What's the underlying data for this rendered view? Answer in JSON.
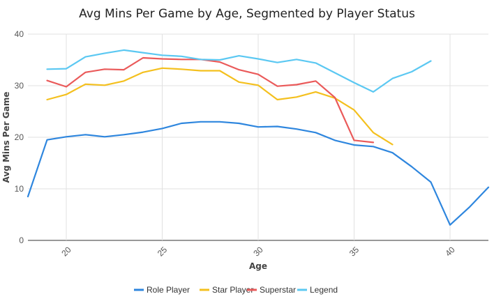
{
  "chart_data": {
    "type": "line",
    "title": "Avg Mins Per Game by Age, Segmented by Player Status",
    "xlabel": "Age",
    "ylabel": "Avg Mins Per Game",
    "xlim": [
      18,
      42
    ],
    "ylim": [
      0,
      40
    ],
    "x_ticks": [
      20,
      25,
      30,
      35,
      40
    ],
    "y_ticks": [
      0,
      10,
      20,
      30,
      40
    ],
    "grid": true,
    "legend_position": "bottom",
    "series": [
      {
        "name": "Role Player",
        "color": "#2e86de",
        "points": [
          [
            18,
            8.5
          ],
          [
            19,
            19.5
          ],
          [
            20,
            20.1
          ],
          [
            21,
            20.5
          ],
          [
            22,
            20.1
          ],
          [
            23,
            20.5
          ],
          [
            24,
            21.0
          ],
          [
            25,
            21.7
          ],
          [
            26,
            22.7
          ],
          [
            27,
            23.0
          ],
          [
            28,
            23.0
          ],
          [
            29,
            22.7
          ],
          [
            30,
            22.0
          ],
          [
            31,
            22.1
          ],
          [
            32,
            21.6
          ],
          [
            33,
            20.9
          ],
          [
            34,
            19.4
          ],
          [
            35,
            18.5
          ],
          [
            36,
            18.2
          ],
          [
            37,
            17.0
          ],
          [
            38,
            14.3
          ],
          [
            39,
            11.3
          ],
          [
            40,
            3.0
          ],
          [
            41,
            6.4
          ],
          [
            42,
            10.3
          ]
        ]
      },
      {
        "name": "Star Player",
        "color": "#f4c01e",
        "points": [
          [
            19,
            27.3
          ],
          [
            20,
            28.3
          ],
          [
            21,
            30.3
          ],
          [
            22,
            30.1
          ],
          [
            23,
            30.9
          ],
          [
            24,
            32.6
          ],
          [
            25,
            33.4
          ],
          [
            26,
            33.2
          ],
          [
            27,
            32.9
          ],
          [
            28,
            32.9
          ],
          [
            29,
            30.7
          ],
          [
            30,
            30.1
          ],
          [
            31,
            27.3
          ],
          [
            32,
            27.8
          ],
          [
            33,
            28.8
          ],
          [
            34,
            27.6
          ],
          [
            35,
            25.3
          ],
          [
            36,
            20.9
          ],
          [
            37,
            18.6
          ]
        ]
      },
      {
        "name": "Superstar",
        "color": "#ea5a5a",
        "points": [
          [
            19,
            31.0
          ],
          [
            20,
            29.8
          ],
          [
            21,
            32.6
          ],
          [
            22,
            33.2
          ],
          [
            23,
            33.1
          ],
          [
            24,
            35.4
          ],
          [
            25,
            35.2
          ],
          [
            26,
            35.1
          ],
          [
            27,
            35.1
          ],
          [
            28,
            34.6
          ],
          [
            29,
            33.1
          ],
          [
            30,
            32.2
          ],
          [
            31,
            29.9
          ],
          [
            32,
            30.2
          ],
          [
            33,
            30.9
          ],
          [
            34,
            27.7
          ],
          [
            35,
            19.4
          ],
          [
            36,
            19.0
          ]
        ]
      },
      {
        "name": "Legend",
        "color": "#5bc8f2",
        "points": [
          [
            19,
            33.2
          ],
          [
            20,
            33.3
          ],
          [
            21,
            35.6
          ],
          [
            22,
            36.3
          ],
          [
            23,
            36.9
          ],
          [
            24,
            36.4
          ],
          [
            25,
            35.9
          ],
          [
            26,
            35.7
          ],
          [
            27,
            35.1
          ],
          [
            28,
            35.0
          ],
          [
            29,
            35.8
          ],
          [
            30,
            35.2
          ],
          [
            31,
            34.5
          ],
          [
            32,
            35.1
          ],
          [
            33,
            34.4
          ],
          [
            34,
            32.5
          ],
          [
            35,
            30.6
          ],
          [
            36,
            28.8
          ],
          [
            37,
            31.4
          ],
          [
            38,
            32.7
          ],
          [
            39,
            34.8
          ]
        ]
      }
    ]
  }
}
